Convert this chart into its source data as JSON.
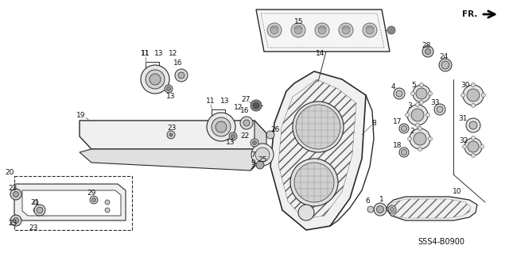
{
  "bg_color": "#ffffff",
  "diagram_code": "S5S4-B0900",
  "ec": "#2a2a2a",
  "gray1": "#aaaaaa",
  "gray2": "#cccccc",
  "gray3": "#888888",
  "hatch_color": "#555555"
}
